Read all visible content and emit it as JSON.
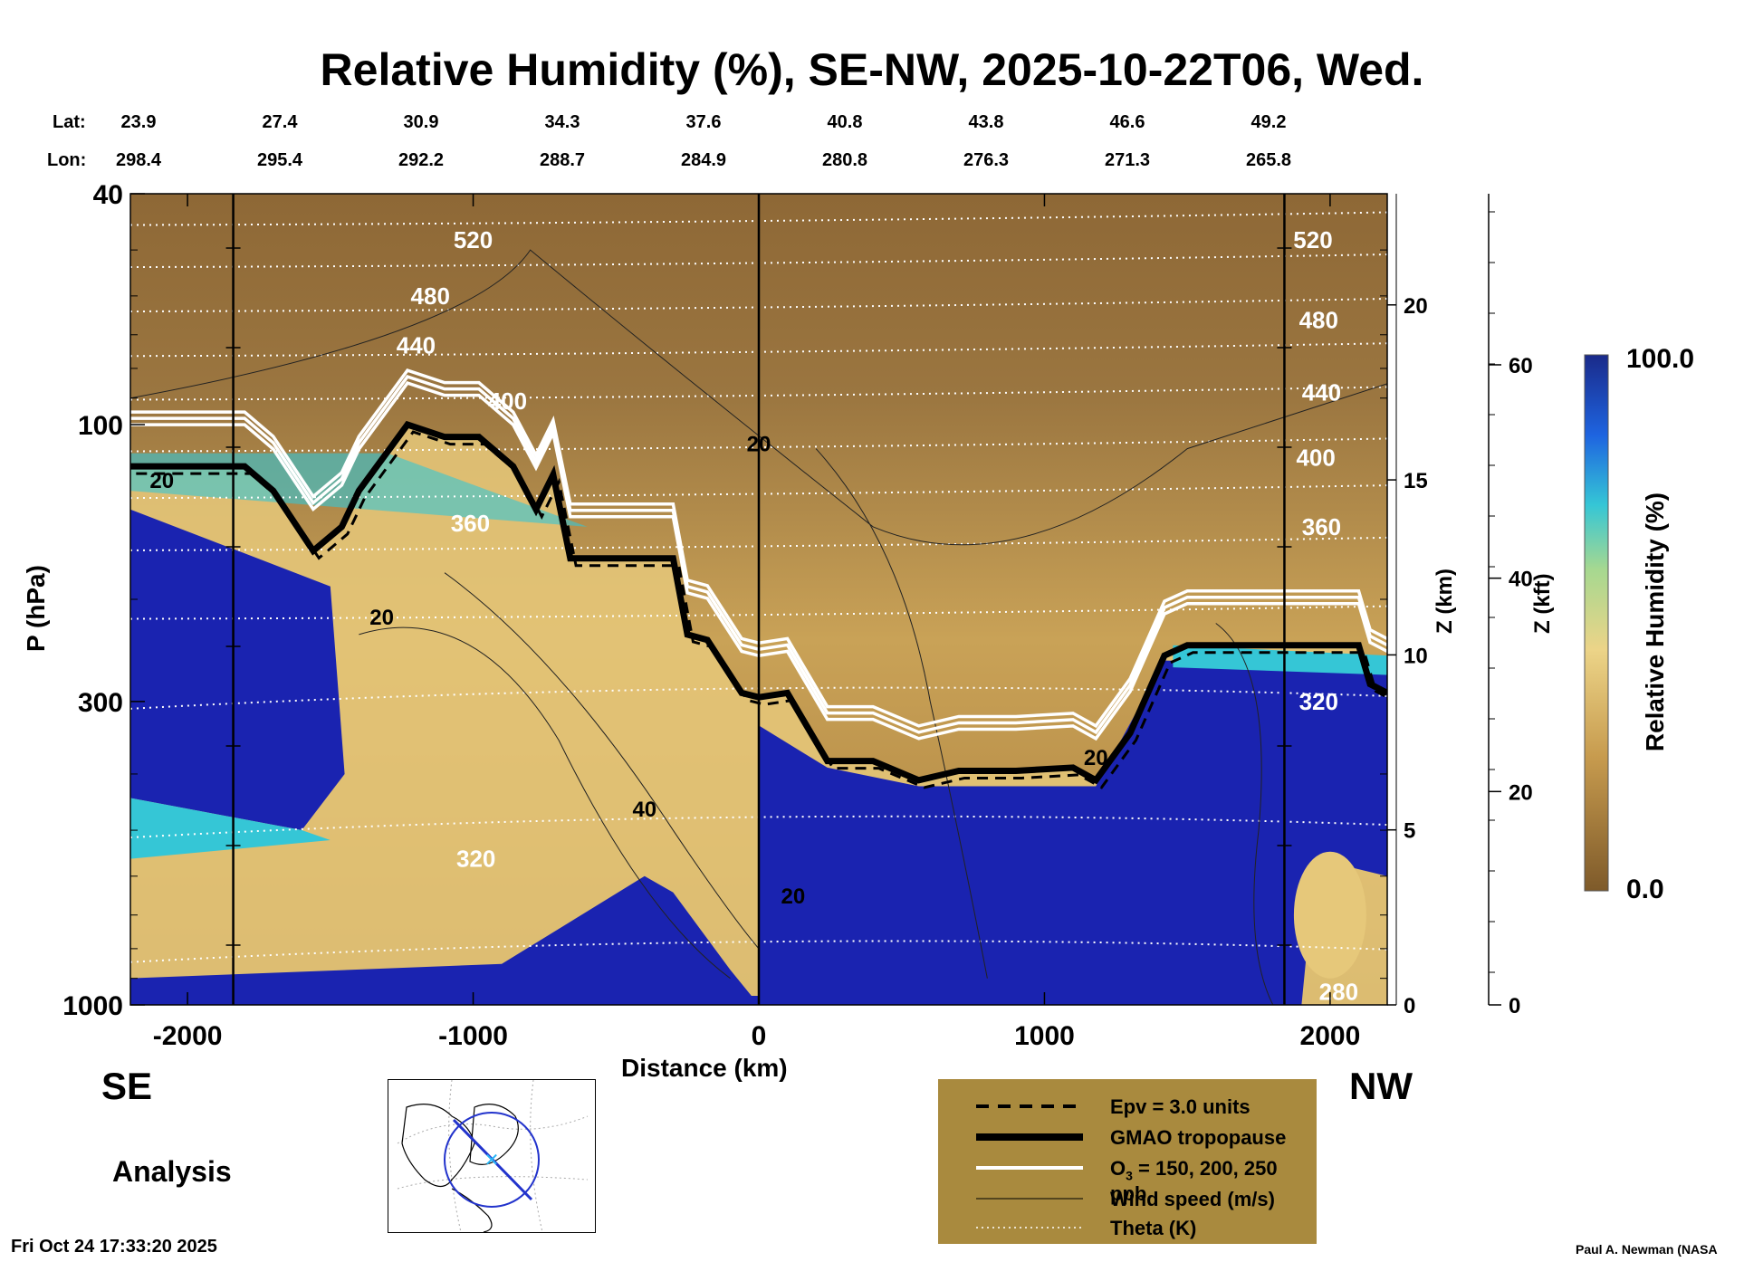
{
  "chart_data": {
    "type": "heatmap",
    "title": "Relative Humidity (%), SE-NW, 2025-10-22T06, Wed.",
    "lat_label": "Lat:",
    "lon_label": "Lon:",
    "lats": [
      "23.9",
      "27.4",
      "30.9",
      "34.3",
      "37.6",
      "40.8",
      "43.8",
      "46.6",
      "49.2"
    ],
    "lons": [
      "298.4",
      "295.4",
      "292.2",
      "288.7",
      "284.9",
      "280.8",
      "276.3",
      "271.3",
      "265.8"
    ],
    "xlabel": "Distance (km)",
    "xlim": [
      -2200,
      2200
    ],
    "xticks": [
      "-2000",
      "-1000",
      "0",
      "1000",
      "2000"
    ],
    "ylabel": "P (hPa)",
    "ylim": [
      1000,
      40
    ],
    "yscale": "log",
    "yticks": [
      "40",
      "100",
      "300",
      "1000"
    ],
    "z_km_label": "Z (km)",
    "z_km_ticks": [
      "0",
      "5",
      "10",
      "15",
      "20"
    ],
    "z_kft_label": "Z (kft)",
    "z_kft_ticks": [
      "0",
      "20",
      "40",
      "60"
    ],
    "colorbar": {
      "label": "Relative Humidity (%)",
      "min": "0.0",
      "max": "100.0"
    },
    "theta_labels": [
      "520",
      "480",
      "440",
      "400",
      "360",
      "320",
      "280",
      "520",
      "480",
      "440",
      "400",
      "360",
      "320"
    ],
    "wind_labels": [
      "20",
      "20",
      "40",
      "20",
      "20",
      "20"
    ],
    "tropopause_profile": {
      "x": [
        -2200,
        -1800,
        -1700,
        -1560,
        -1460,
        -1400,
        -1230,
        -1100,
        -980,
        -860,
        -780,
        -720,
        -660,
        -600,
        -300,
        -250,
        -180,
        -60,
        0,
        100,
        240,
        400,
        560,
        700,
        900,
        1100,
        1180,
        1300,
        1420,
        1500,
        2100,
        2140,
        2200
      ],
      "p": [
        118,
        118,
        130,
        165,
        150,
        130,
        100,
        105,
        105,
        118,
        140,
        122,
        170,
        170,
        170,
        230,
        235,
        290,
        295,
        290,
        380,
        380,
        410,
        395,
        395,
        390,
        410,
        340,
        250,
        240,
        240,
        280,
        290
      ]
    },
    "left_label": "SE",
    "right_label": "NW",
    "mode_label": "Analysis",
    "legend": [
      {
        "label": "Epv = 3.0 units",
        "style": "dashed-black"
      },
      {
        "label": "GMAO tropopause",
        "style": "thick-black"
      },
      {
        "label": "O",
        "sub": "3",
        "rest": " = 150, 200, 250 ppb",
        "style": "white"
      },
      {
        "label": "Wind speed (m/s)",
        "style": "thin-black"
      },
      {
        "label": "Theta (K)",
        "style": "dotted-white"
      }
    ],
    "colors": {
      "dry": "#8a6332",
      "mid_dry": "#c79b4e",
      "mid": "#e6c87a",
      "moist": "#35c6d6",
      "wet": "#1a23b0",
      "legend_bg": "#a98a3e"
    }
  },
  "timestamp": "Fri Oct 24 17:33:20 2025",
  "credit": "Paul A. Newman (NASA"
}
